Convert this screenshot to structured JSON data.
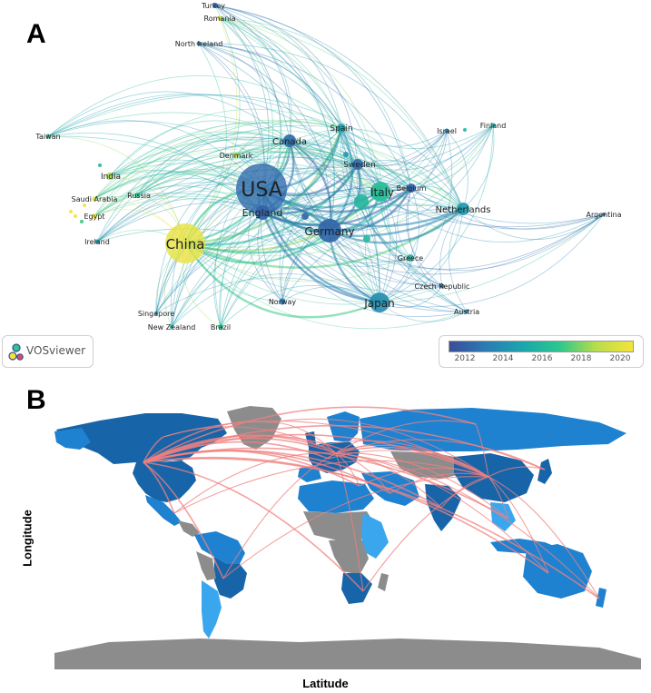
{
  "panels": {
    "a_label": "A",
    "b_label": "B"
  },
  "network": {
    "nodes": [
      {
        "id": "usa",
        "label": "USA",
        "year": 2012.6
      },
      {
        "id": "china",
        "label": "China",
        "year": 2020.2
      },
      {
        "id": "germany",
        "label": "Germany",
        "year": 2012.4
      },
      {
        "id": "england",
        "label": "England",
        "year": 2012.3
      },
      {
        "id": "italy",
        "label": "Italy",
        "year": 2016.3
      },
      {
        "id": "japan",
        "label": "Japan",
        "year": 2014.0
      },
      {
        "id": "canada",
        "label": "Canada",
        "year": 2012.6
      },
      {
        "id": "netherlands",
        "label": "Netherlands",
        "year": 2014.6
      },
      {
        "id": "spain",
        "label": "Spain",
        "year": 2015.2
      },
      {
        "id": "sweden",
        "label": "Sweden",
        "year": 2012.5
      },
      {
        "id": "belgium",
        "label": "Belgium",
        "year": 2012.3
      },
      {
        "id": "india",
        "label": "India",
        "year": 2018.5
      },
      {
        "id": "russia",
        "label": "Russia",
        "year": 2017.0
      },
      {
        "id": "denmark",
        "label": "Denmark",
        "year": 2018.8
      },
      {
        "id": "saudi",
        "label": "Saudi Arabia",
        "year": 2020.0
      },
      {
        "id": "egypt",
        "label": "Egypt",
        "year": 2020.5
      },
      {
        "id": "ireland",
        "label": "Ireland",
        "year": 2014.8
      },
      {
        "id": "taiwan",
        "label": "Taiwan",
        "year": 2016.6
      },
      {
        "id": "turkey",
        "label": "Turkey",
        "year": 2012.5
      },
      {
        "id": "romania",
        "label": "Romania",
        "year": 2019.8
      },
      {
        "id": "northireland",
        "label": "North Ireland",
        "year": 2013.0
      },
      {
        "id": "israel",
        "label": "Israel",
        "year": 2013.5
      },
      {
        "id": "finland",
        "label": "Finland",
        "year": 2015.5
      },
      {
        "id": "argentina",
        "label": "Argentina",
        "year": 2013.0
      },
      {
        "id": "greece",
        "label": "Greece",
        "year": 2016.0
      },
      {
        "id": "czech",
        "label": "Czech Republic",
        "year": 2013.0
      },
      {
        "id": "austria",
        "label": "Austria",
        "year": 2014.0
      },
      {
        "id": "norway",
        "label": "Norway",
        "year": 2013.2
      },
      {
        "id": "singapore",
        "label": "Singapore",
        "year": 2015.0
      },
      {
        "id": "newzealand",
        "label": "New Zealand",
        "year": 2015.5
      },
      {
        "id": "brazil",
        "label": "Brazil",
        "year": 2016.8
      }
    ],
    "legend": {
      "ticks": [
        "2012",
        "2014",
        "2016",
        "2018",
        "2020"
      ]
    },
    "badge": {
      "text": "VOSviewer"
    }
  },
  "colors": {
    "scale": [
      "#3b4c9a",
      "#2a7cb4",
      "#1ba5ad",
      "#2bc78c",
      "#b8dd4b",
      "#f4e43a"
    ],
    "map_dark": "#1765a8",
    "map_mid": "#1e82d0",
    "map_light": "#3aa6ee",
    "map_gray": "#8c8c8c",
    "flow": "#f08080"
  },
  "map": {
    "xlabel": "Latitude",
    "ylabel": "Longitude"
  }
}
